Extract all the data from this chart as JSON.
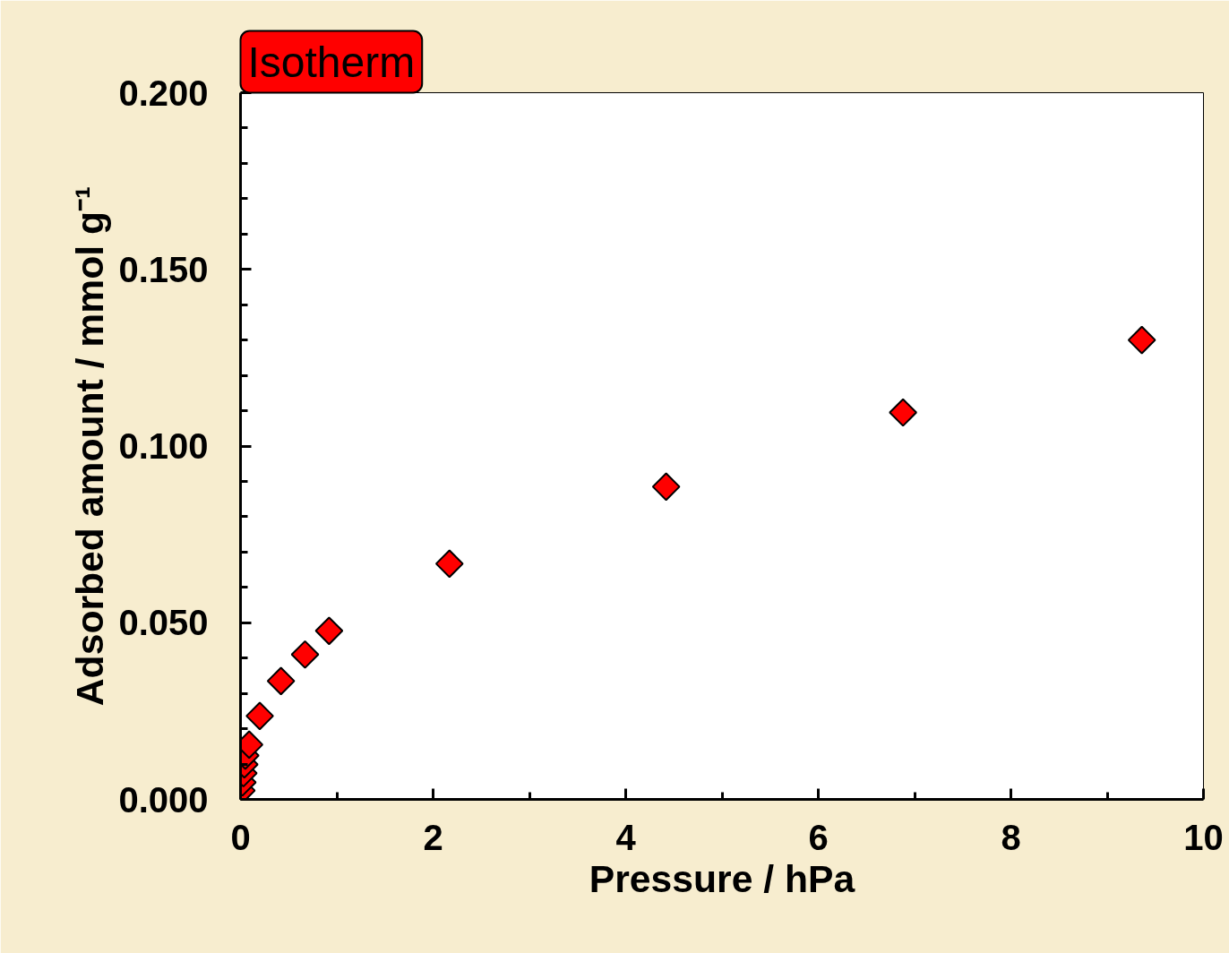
{
  "chart_data": {
    "type": "scatter",
    "title": "Isotherm",
    "xlabel": "Pressure / hPa",
    "ylabel": "Adsorbed amount / mmol g⁻¹",
    "x": [
      0.01,
      0.02,
      0.03,
      0.04,
      0.05,
      0.09,
      0.2,
      0.42,
      0.67,
      0.92,
      2.17,
      4.42,
      6.88,
      9.36
    ],
    "series": [
      {
        "color": "#ff0000",
        "values": [
          0.0025,
          0.0048,
          0.0074,
          0.0099,
          0.0124,
          0.0155,
          0.0236,
          0.0335,
          0.041,
          0.0477,
          0.0667,
          0.0885,
          0.1095,
          0.13
        ]
      }
    ],
    "marker": "diamond",
    "grid": false,
    "xlim": [
      0,
      10
    ],
    "xticks": [
      0,
      {
        "value": 1,
        "label": null
      },
      2,
      {
        "value": 3,
        "label": null
      },
      4,
      {
        "value": 5,
        "label": null
      },
      6,
      {
        "value": 7,
        "label": null
      },
      8,
      {
        "value": 9,
        "label": null
      },
      10
    ],
    "ylim": [
      0,
      0.2
    ],
    "yticks": [
      {
        "value": 0,
        "label": "0.000"
      },
      {
        "value": 0.01,
        "label": null
      },
      {
        "value": 0.02,
        "label": null
      },
      {
        "value": 0.03,
        "label": null
      },
      {
        "value": 0.04,
        "label": null
      },
      {
        "value": 0.05,
        "label": "0.050"
      },
      {
        "value": 0.06,
        "label": null
      },
      {
        "value": 0.07,
        "label": null
      },
      {
        "value": 0.08,
        "label": null
      },
      {
        "value": 0.09,
        "label": null
      },
      {
        "value": 0.1,
        "label": "0.100"
      },
      {
        "value": 0.11,
        "label": null
      },
      {
        "value": 0.12,
        "label": null
      },
      {
        "value": 0.13,
        "label": null
      },
      {
        "value": 0.14,
        "label": null
      },
      {
        "value": 0.15,
        "label": "0.150"
      },
      {
        "value": 0.16,
        "label": null
      },
      {
        "value": 0.17,
        "label": null
      },
      {
        "value": 0.18,
        "label": null
      },
      {
        "value": 0.19,
        "label": null
      },
      {
        "value": 0.2,
        "label": "0.200"
      }
    ]
  }
}
